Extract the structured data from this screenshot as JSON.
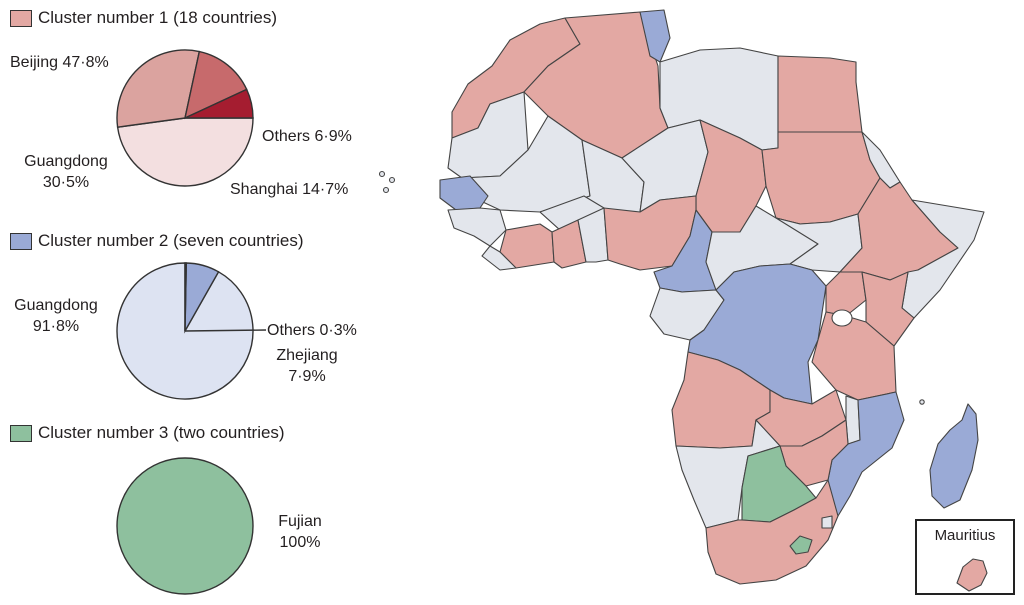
{
  "colors": {
    "cluster1": "#e3a8a3",
    "cluster2": "#9aaad6",
    "cluster3": "#8ec09e",
    "nodata": "#e3e6ec",
    "pie1": [
      "#f3dfe0",
      "#dba39f",
      "#c76a6c",
      "#a51d30"
    ],
    "pie2": [
      "#dde3f2",
      "#9aaad6",
      "#3b4a8a"
    ],
    "pie3": [
      "#8ec09e"
    ]
  },
  "legends": [
    {
      "text": "Cluster number 1 (18 countries)",
      "color": "#e3a8a3"
    },
    {
      "text": "Cluster number 2 (seven countries)",
      "color": "#9aaad6"
    },
    {
      "text": "Cluster number 3 (two countries)",
      "color": "#8ec09e"
    }
  ],
  "pie_labels": {
    "c1_beijing": "Beijing 47·8%",
    "c1_guangdong_name": "Guangdong",
    "c1_guangdong_val": "30·5%",
    "c1_others": "Others 6·9%",
    "c1_shanghai": "Shanghai 14·7%",
    "c2_guangdong_name": "Guangdong",
    "c2_guangdong_val": "91·8%",
    "c2_others": "Others 0·3%",
    "c2_zhejiang_name": "Zhejiang",
    "c2_zhejiang_val": "7·9%",
    "c3_fujian_name": "Fujian",
    "c3_fujian_val": "100%"
  },
  "map": {
    "inset_label": "Mauritius"
  },
  "chart_data": [
    {
      "type": "pie",
      "title": "Cluster number 1 (18 countries)",
      "categories": [
        "Beijing",
        "Guangdong",
        "Shanghai",
        "Others"
      ],
      "values": [
        47.8,
        30.5,
        14.7,
        6.9
      ]
    },
    {
      "type": "pie",
      "title": "Cluster number 2 (seven countries)",
      "categories": [
        "Guangdong",
        "Zhejiang",
        "Others"
      ],
      "values": [
        91.8,
        7.9,
        0.3
      ]
    },
    {
      "type": "pie",
      "title": "Cluster number 3 (two countries)",
      "categories": [
        "Fujian"
      ],
      "values": [
        100
      ]
    }
  ]
}
